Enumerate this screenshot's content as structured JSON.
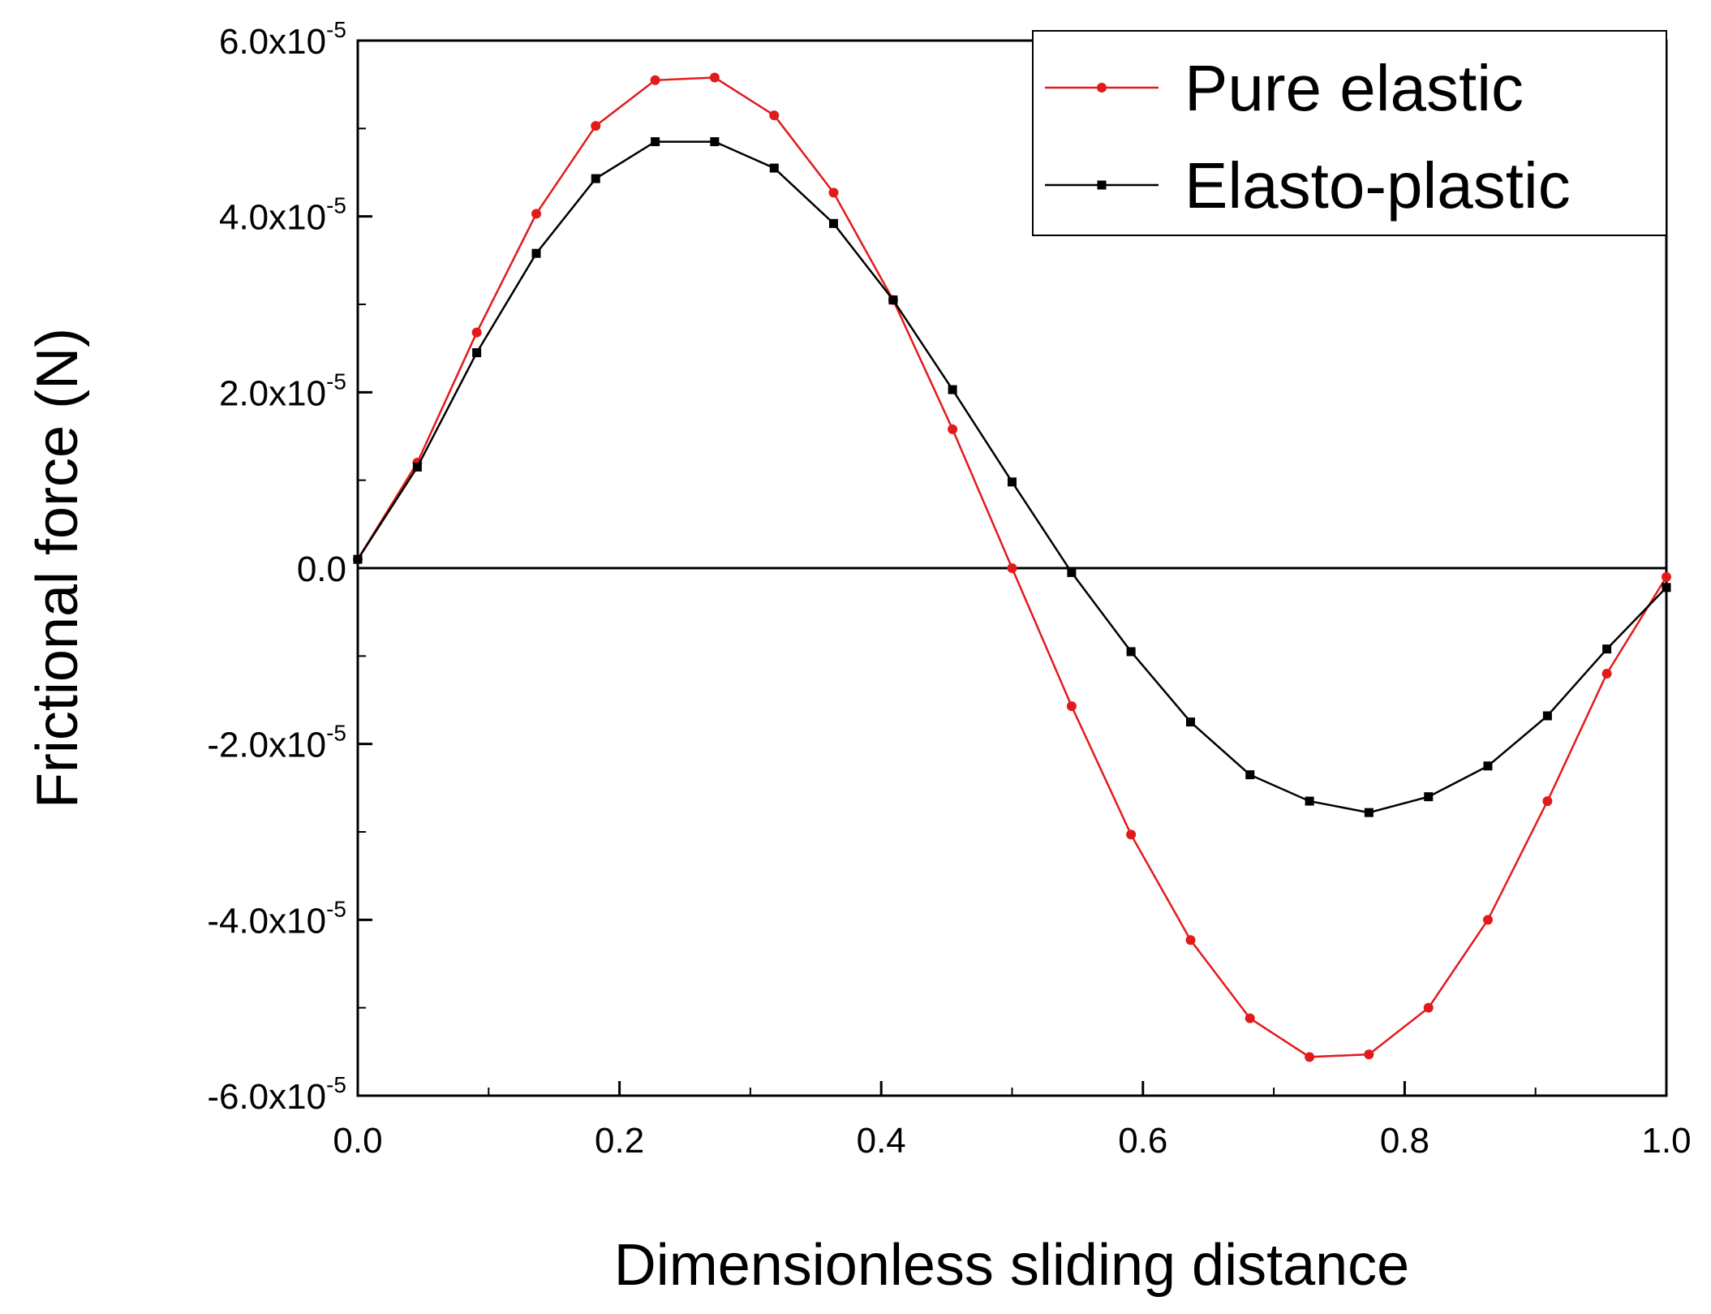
{
  "chart_data": {
    "type": "line",
    "title": "",
    "xlabel": "Dimensionless sliding distance",
    "ylabel": "Frictional force (N)",
    "xlim": [
      0.0,
      1.0
    ],
    "ylim": [
      -6e-05,
      6e-05
    ],
    "x_ticks": [
      {
        "value": 0.0,
        "label": "0.0"
      },
      {
        "value": 0.2,
        "label": "0.2"
      },
      {
        "value": 0.4,
        "label": "0.4"
      },
      {
        "value": 0.6,
        "label": "0.6"
      },
      {
        "value": 0.8,
        "label": "0.8"
      },
      {
        "value": 1.0,
        "label": "1.0"
      }
    ],
    "y_ticks": [
      {
        "value": 6e-05,
        "mantissa": "6.0x10",
        "exponent": "-5"
      },
      {
        "value": 4e-05,
        "mantissa": "4.0x10",
        "exponent": "-5"
      },
      {
        "value": 2e-05,
        "mantissa": "2.0x10",
        "exponent": "-5"
      },
      {
        "value": 0.0,
        "mantissa": "0.0",
        "exponent": ""
      },
      {
        "value": -2e-05,
        "mantissa": "-2.0x10",
        "exponent": "-5"
      },
      {
        "value": -4e-05,
        "mantissa": "-4.0x10",
        "exponent": "-5"
      },
      {
        "value": -6e-05,
        "mantissa": "-6.0x10",
        "exponent": "-5"
      }
    ],
    "zero_line": true,
    "legend_position": "top-right",
    "x": [
      0.0,
      0.0455,
      0.0909,
      0.1364,
      0.1818,
      0.2273,
      0.2727,
      0.3182,
      0.3636,
      0.4091,
      0.4545,
      0.5,
      0.5455,
      0.5909,
      0.6364,
      0.6818,
      0.7273,
      0.7727,
      0.8182,
      0.8636,
      0.9091,
      0.9545,
      1.0
    ],
    "series": [
      {
        "name": "Pure elastic",
        "color": "#e31a1c",
        "marker": "circle",
        "values": [
          1e-06,
          1.2e-05,
          2.68e-05,
          4.03e-05,
          5.03e-05,
          5.55e-05,
          5.58e-05,
          5.15e-05,
          4.27e-05,
          3.05e-05,
          1.58e-05,
          0.0,
          -1.57e-05,
          -3.03e-05,
          -4.23e-05,
          -5.12e-05,
          -5.56e-05,
          -5.53e-05,
          -5e-05,
          -4e-05,
          -2.65e-05,
          -1.2e-05,
          -1e-06
        ]
      },
      {
        "name": "Elasto-plastic",
        "color": "#000000",
        "marker": "square",
        "values": [
          1e-06,
          1.15e-05,
          2.45e-05,
          3.58e-05,
          4.43e-05,
          4.85e-05,
          4.85e-05,
          4.55e-05,
          3.92e-05,
          3.05e-05,
          2.03e-05,
          9.8e-06,
          -5e-07,
          -9.5e-06,
          -1.75e-05,
          -2.35e-05,
          -2.65e-05,
          -2.78e-05,
          -2.6e-05,
          -2.25e-05,
          -1.68e-05,
          -9.2e-06,
          -2.2e-06
        ]
      }
    ]
  }
}
